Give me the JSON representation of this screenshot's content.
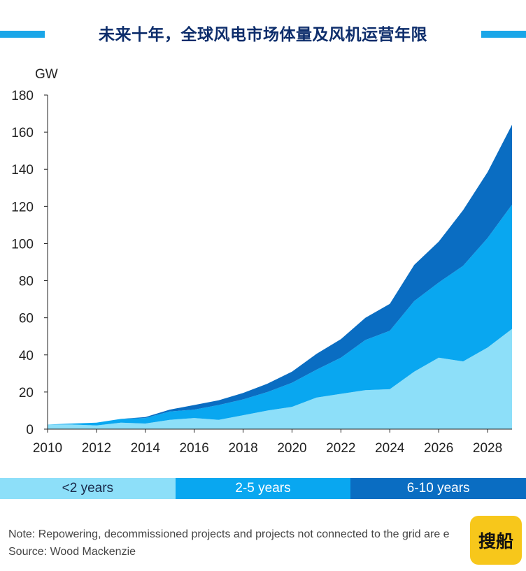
{
  "header": {
    "title": "未来十年，全球风电市场体量及风机运营年限"
  },
  "chart_data": {
    "type": "area",
    "stacked": true,
    "ylabel": "GW",
    "ylim": [
      0,
      180
    ],
    "yticks": [
      0,
      20,
      40,
      60,
      80,
      100,
      120,
      140,
      160,
      180
    ],
    "xlim": [
      2010,
      2029
    ],
    "xticks": [
      2010,
      2012,
      2014,
      2016,
      2018,
      2020,
      2022,
      2024,
      2026,
      2028
    ],
    "grid": false,
    "legend_position": "bottom",
    "x": [
      2010,
      2011,
      2012,
      2013,
      2014,
      2015,
      2016,
      2017,
      2018,
      2019,
      2020,
      2021,
      2022,
      2023,
      2024,
      2025,
      2026,
      2027,
      2028,
      2029
    ],
    "series": [
      {
        "name": "<2 years",
        "color": "#8ddff9",
        "values": [
          2.5,
          2.5,
          2,
          3.5,
          3,
          5,
          6,
          5,
          7.5,
          10,
          12,
          17,
          19,
          21,
          21.5,
          31,
          38.5,
          36.5,
          44,
          54
        ]
      },
      {
        "name": "2-5 years",
        "color": "#09a7f0",
        "values": [
          0,
          0.5,
          1.5,
          2,
          3,
          4.5,
          4.5,
          8,
          8.5,
          10,
          13,
          15,
          19.5,
          27,
          31.5,
          38,
          40.5,
          51.5,
          59,
          67
        ]
      },
      {
        "name": "6-10 years",
        "color": "#0a6dc2",
        "values": [
          0,
          0,
          0,
          0,
          0.5,
          1,
          2.5,
          2.5,
          3.5,
          4.5,
          6,
          8.5,
          10,
          12,
          14.5,
          19.5,
          22,
          30,
          35.5,
          43
        ]
      }
    ]
  },
  "legend": {
    "items": [
      "<2 years",
      "2-5 years",
      "6-10 years"
    ]
  },
  "notes": {
    "note": "Note: Repowering, decommissioned projects and projects not connected to the grid are e",
    "source": "Source: Wood Mackenzie"
  },
  "logo": {
    "text": "搜船"
  }
}
